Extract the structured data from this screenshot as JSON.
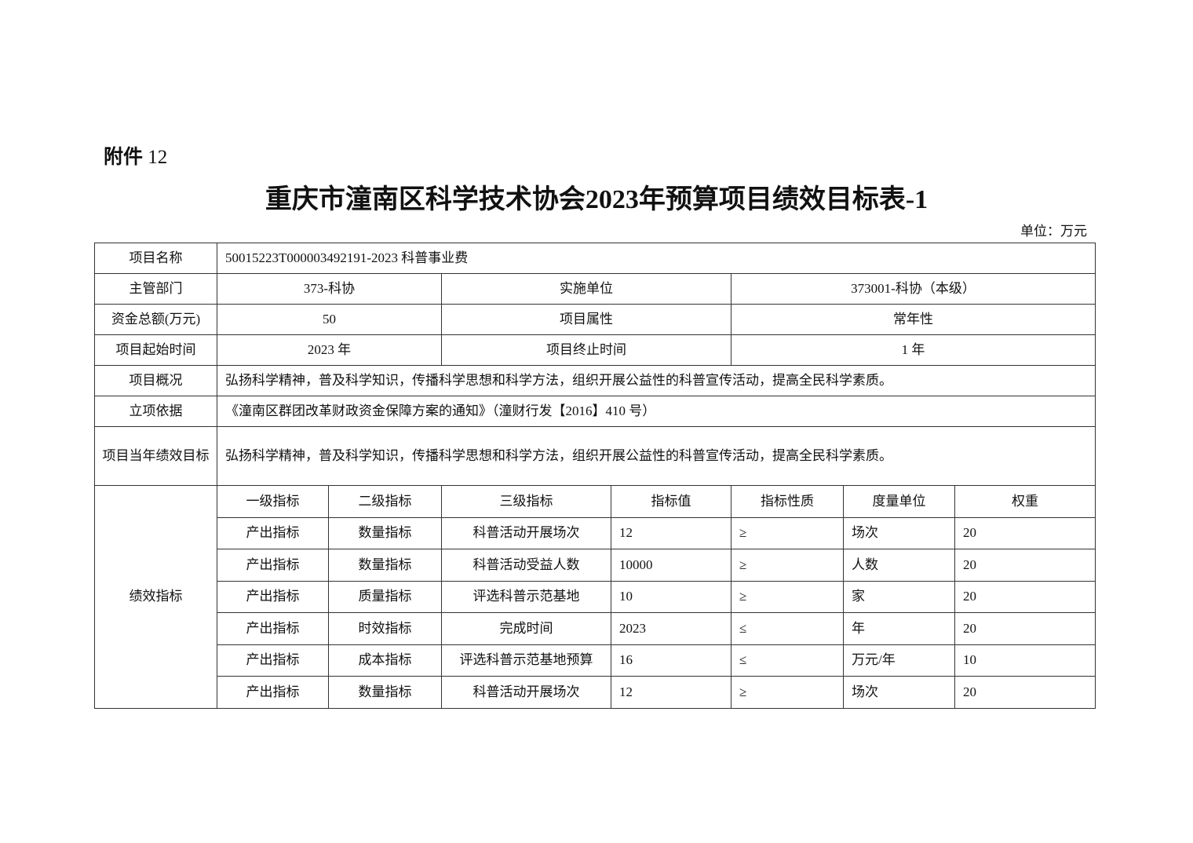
{
  "attachment": {
    "prefix": "附件",
    "number": "12"
  },
  "title": "重庆市潼南区科学技术协会2023年预算项目绩效目标表-1",
  "unit": "单位：万元",
  "info": {
    "project_name_label": "项目名称",
    "project_name": "50015223T000003492191-2023 科普事业费",
    "dept_label": "主管部门",
    "dept": "373-科协",
    "impl_label": "实施单位",
    "impl": "373001-科协（本级）",
    "fund_label": "资金总额(万元)",
    "fund": "50",
    "attr_label": "项目属性",
    "attr": "常年性",
    "start_label": "项目起始时间",
    "start": "2023 年",
    "end_label": "项目终止时间",
    "end": "1 年",
    "overview_label": "项目概况",
    "overview": "弘扬科学精神，普及科学知识，传播科学思想和科学方法，组织开展公益性的科普宣传活动，提高全民科学素质。",
    "basis_label": "立项依据",
    "basis": "《潼南区群团改革财政资金保障方案的通知》（潼财行发【2016】410 号）",
    "goal_label": "项目当年绩效目标",
    "goal": "弘扬科学精神，普及科学知识，传播科学思想和科学方法，组织开展公益性的科普宣传活动，提高全民科学素质。"
  },
  "indicators": {
    "section_label": "绩效指标",
    "headers": [
      "一级指标",
      "二级指标",
      "三级指标",
      "指标值",
      "指标性质",
      "度量单位",
      "权重"
    ],
    "rows": [
      [
        "产出指标",
        "数量指标",
        "科普活动开展场次",
        "12",
        "≥",
        "场次",
        "20"
      ],
      [
        "产出指标",
        "数量指标",
        "科普活动受益人数",
        "10000",
        "≥",
        "人数",
        "20"
      ],
      [
        "产出指标",
        "质量指标",
        "评选科普示范基地",
        "10",
        "≥",
        "家",
        "20"
      ],
      [
        "产出指标",
        "时效指标",
        "完成时间",
        "2023",
        "≤",
        "年",
        "20"
      ],
      [
        "产出指标",
        "成本指标",
        "评选科普示范基地预算",
        "16",
        "≤",
        "万元/年",
        "10"
      ],
      [
        "产出指标",
        "数量指标",
        "科普活动开展场次",
        "12",
        "≥",
        "场次",
        "20"
      ]
    ]
  }
}
